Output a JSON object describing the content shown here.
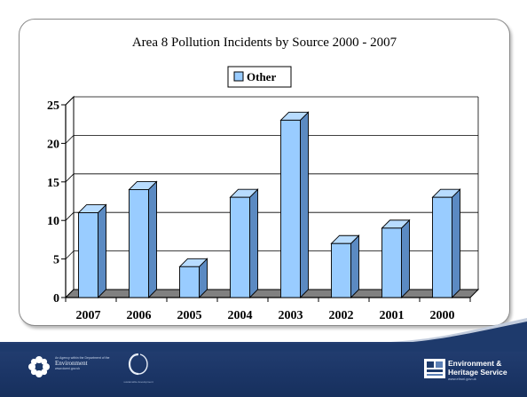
{
  "chart_data": {
    "type": "bar",
    "title": "Area 8 Pollution Incidents by Source 2000 - 2007",
    "xlabel": "",
    "ylabel": "",
    "categories": [
      "2007",
      "2006",
      "2005",
      "2004",
      "2003",
      "2002",
      "2001",
      "2000"
    ],
    "series": [
      {
        "name": "Other",
        "values": [
          11,
          14,
          4,
          13,
          23,
          7,
          9,
          13
        ]
      }
    ],
    "ylim": [
      0,
      25
    ],
    "yticks": [
      "0",
      "5",
      "10",
      "15",
      "20",
      "25"
    ],
    "grid": true,
    "legend": "top-center",
    "style": "3d",
    "colors": {
      "bar_front": "#99ccff",
      "bar_side": "#5b8ac2",
      "bar_top": "#b8dcff",
      "floor": "#808080",
      "wall": "#ffffff",
      "gridline": "#000000"
    }
  },
  "footer": {
    "left_logo_lines": [
      "An Agency within the Department of the",
      "Environment",
      "www.doeni.gov.uk"
    ],
    "mid_logo_caption": "sustainable development",
    "right_brand_lines": [
      "Environment &",
      "Heritage Service"
    ],
    "right_url": "www.ehsni.gov.uk",
    "colors": {
      "band": "#1d3a6b",
      "swoosh": "#c2ccdd"
    },
    "icons": [
      "flower-logo-icon",
      "circle-logo-icon",
      "ehs-logo-icon"
    ]
  }
}
